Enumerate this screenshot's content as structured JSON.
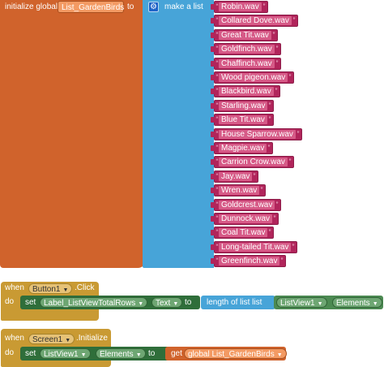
{
  "init_global": {
    "prefix": "initialize global",
    "var_name": "List_GardenBirds",
    "to": "to"
  },
  "make_list": {
    "label": "make a list",
    "icon": "gear-icon"
  },
  "list_items": [
    "Robin.wav",
    "Collared Dove.wav",
    "Great Tit.wav",
    "Goldfinch.wav",
    "Chaffinch.wav",
    "Wood pigeon.wav",
    "Blackbird.wav",
    "Starling.wav",
    "Blue Tit.wav",
    "House Sparrow.wav",
    "Magpie.wav",
    "Carrion Crow.wav",
    "Jay.wav",
    "Wren.wav",
    "Goldcrest.wav",
    "Dunnock.wav",
    "Coal Tit.wav",
    "Long-tailed Tit.wav",
    "Greenfinch.wav"
  ],
  "button_event": {
    "when": "when",
    "component": "Button1",
    "event": ".Click",
    "do": "do",
    "set": "set",
    "target": "Label_ListViewTotalRows",
    "property": "Text",
    "to": "to",
    "length_label": "length of list  list",
    "list_component": "ListView1",
    "list_property": "Elements"
  },
  "screen_event": {
    "when": "when",
    "component": "Screen1",
    "event": ".Initialize",
    "do": "do",
    "set": "set",
    "target": "ListView1",
    "property": "Elements",
    "to": "to",
    "get": "get",
    "get_var": "global List_GardenBirds"
  },
  "colors": {
    "variables": "#d0632c",
    "lists": "#47a4d8",
    "text": "#b1255b",
    "control": "#c99a33",
    "components": "#2f6e3a"
  }
}
